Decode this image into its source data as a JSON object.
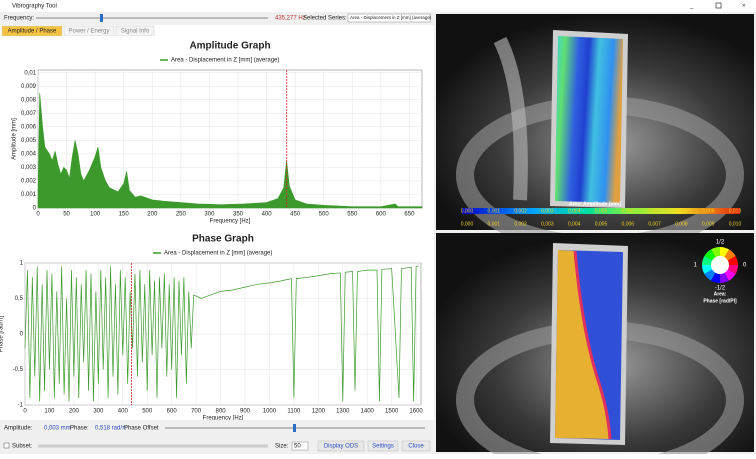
{
  "window": {
    "title": "Vibrography Tool"
  },
  "toolbar": {
    "frequency_label": "Frequency:",
    "frequency_value": "435,277 Hz",
    "series_label": "Selected Series:",
    "series_value": "Area - Displacement in Z [mm] (average)"
  },
  "tabs": [
    "Amplitude / Phase",
    "Power / Energy",
    "Signal Info"
  ],
  "amplitude_graph": {
    "type": "area",
    "title": "Amplitude Graph",
    "legend": "Area - Displacement in Z [mm] (average)",
    "x_label": "Frequency [Hz]",
    "y_label": "Amplitude [mm]",
    "color": "#3c9a2c",
    "cursor": 435.277,
    "grid": true,
    "x": [
      0,
      3,
      8,
      12,
      20,
      25,
      30,
      35,
      40,
      45,
      50,
      55,
      60,
      65,
      70,
      75,
      80,
      90,
      100,
      105,
      110,
      118,
      125,
      140,
      150,
      155,
      160,
      170,
      180,
      200,
      220,
      250,
      280,
      320,
      360,
      400,
      420,
      430,
      435,
      440,
      450,
      470,
      500,
      550,
      600,
      625,
      630,
      672
    ],
    "values": [
      0.001,
      0.0085,
      0.006,
      0.0045,
      0.004,
      0.0035,
      0.0042,
      0.0032,
      0.0025,
      0.003,
      0.0028,
      0.0022,
      0.0038,
      0.005,
      0.004,
      0.0025,
      0.002,
      0.0028,
      0.0038,
      0.0045,
      0.003,
      0.002,
      0.0015,
      0.0012,
      0.0018,
      0.0027,
      0.0013,
      0.0008,
      0.0009,
      0.0006,
      0.0005,
      0.0004,
      0.0003,
      0.00025,
      0.0003,
      0.0004,
      0.0007,
      0.0015,
      0.0035,
      0.0016,
      0.0006,
      0.0003,
      0.0002,
      0.0001,
      0.0001,
      0.0003,
      0.0001,
      0.0001
    ],
    "xlim": [
      0,
      672
    ],
    "ylim": [
      0,
      0.0102
    ],
    "xticks": [
      0,
      50,
      100,
      150,
      200,
      250,
      300,
      350,
      400,
      450,
      500,
      550,
      600,
      650
    ],
    "yticks": [
      0,
      {
        "value": 0.001,
        "label": "0,001"
      },
      {
        "value": 0.002,
        "label": "0,002"
      },
      {
        "value": 0.003,
        "label": "0,003"
      },
      {
        "value": 0.004,
        "label": "0,004"
      },
      {
        "value": 0.005,
        "label": "0,005"
      },
      {
        "value": 0.006,
        "label": "0,006"
      },
      {
        "value": 0.007,
        "label": "0,007"
      },
      {
        "value": 0.008,
        "label": "0,008"
      },
      {
        "value": 0.009,
        "label": "0,009"
      },
      {
        "value": 0.01,
        "label": "0,01"
      }
    ]
  },
  "phase_graph": {
    "type": "line",
    "title": "Phase Graph",
    "legend": "Area - Displacement in Z [mm] (average)",
    "x_label": "Frequency [Hz]",
    "y_label": "Phase [rad/π]",
    "color": "#3c9a2c",
    "cursor": 435.277,
    "grid": true,
    "x": [
      0,
      10,
      20,
      30,
      40,
      50,
      60,
      70,
      80,
      90,
      100,
      110,
      120,
      130,
      140,
      150,
      160,
      170,
      180,
      190,
      200,
      210,
      220,
      230,
      240,
      250,
      260,
      270,
      280,
      290,
      300,
      310,
      320,
      330,
      340,
      350,
      360,
      370,
      380,
      390,
      400,
      410,
      420,
      430,
      440,
      450,
      460,
      470,
      480,
      490,
      500,
      510,
      520,
      530,
      540,
      550,
      560,
      570,
      580,
      590,
      600,
      610,
      620,
      630,
      640,
      650,
      660,
      670,
      680,
      690,
      720,
      760,
      800,
      850,
      900,
      950,
      1000,
      1050,
      1090,
      1100,
      1110,
      1160,
      1200,
      1250,
      1290,
      1300,
      1310,
      1340,
      1350,
      1360,
      1400,
      1440,
      1450,
      1460,
      1500,
      1530,
      1540,
      1580,
      1590,
      1600,
      1610
    ],
    "values": [
      -0.2,
      0.9,
      -0.9,
      0.8,
      -0.6,
      0.95,
      -0.95,
      0.7,
      -0.8,
      0.9,
      -0.5,
      0.85,
      -0.9,
      0.6,
      -0.7,
      0.95,
      -0.85,
      0.5,
      -0.95,
      0.9,
      -0.6,
      0.8,
      -0.9,
      0.7,
      -0.4,
      0.9,
      -0.8,
      0.85,
      -0.95,
      0.6,
      -0.7,
      0.9,
      -0.5,
      0.8,
      -0.9,
      0.95,
      -0.6,
      0.7,
      -0.85,
      0.9,
      -0.3,
      0.8,
      -0.7,
      0.6,
      -0.2,
      0.85,
      -0.6,
      0.9,
      -0.4,
      0.7,
      -0.8,
      0.9,
      -0.3,
      0.75,
      -0.9,
      0.8,
      -0.2,
      0.85,
      -0.6,
      0.7,
      -0.5,
      0.8,
      -0.9,
      0.75,
      -0.3,
      0.8,
      -0.7,
      0.6,
      -0.2,
      0.55,
      0.5,
      0.55,
      0.6,
      0.62,
      0.66,
      0.7,
      0.72,
      0.75,
      0.78,
      -0.9,
      0.78,
      0.8,
      0.82,
      0.85,
      0.86,
      -0.95,
      0.87,
      0.88,
      -0.8,
      0.88,
      0.9,
      0.9,
      -0.95,
      0.91,
      0.92,
      -0.9,
      0.92,
      0.94,
      -0.95,
      0.95,
      0.96
    ],
    "xlim": [
      0,
      1620
    ],
    "ylim": [
      -1,
      1
    ],
    "xticks": [
      0,
      100,
      200,
      300,
      400,
      500,
      600,
      700,
      800,
      900,
      1000,
      1100,
      1200,
      1300,
      1400,
      1500,
      1600
    ],
    "yticks": [
      -1,
      {
        "value": -0.5,
        "label": "-0,5"
      },
      0,
      {
        "value": 0.5,
        "label": "0,5"
      },
      1
    ]
  },
  "status": {
    "amplitude_label": "Amplitude:",
    "amplitude_value": "0,003 mm",
    "phase_label": "Phase:",
    "phase_value": "0,518 rad/π",
    "phase_offset_label": "Phase Offset",
    "subset_label": "Subset:",
    "size_label": "Size:",
    "size_value": "50",
    "buttons": [
      "Display ODS",
      "Settings",
      "Close"
    ]
  },
  "amplitude_view": {
    "colorbar_title": "Area: Amplitude [mm]",
    "colorbar_labels": [
      "0,000",
      "0,001",
      "0,002",
      "0,003",
      "0,004",
      "0,005",
      "0,006",
      "0,007",
      "0,008",
      "0,009",
      "0,010"
    ]
  },
  "phase_view": {
    "wheel_top": "1/2",
    "wheel_right": "0",
    "wheel_bottom": "-1/2",
    "wheel_left": "1",
    "title": "Area:",
    "unit": "Phase [rad/PI]"
  }
}
